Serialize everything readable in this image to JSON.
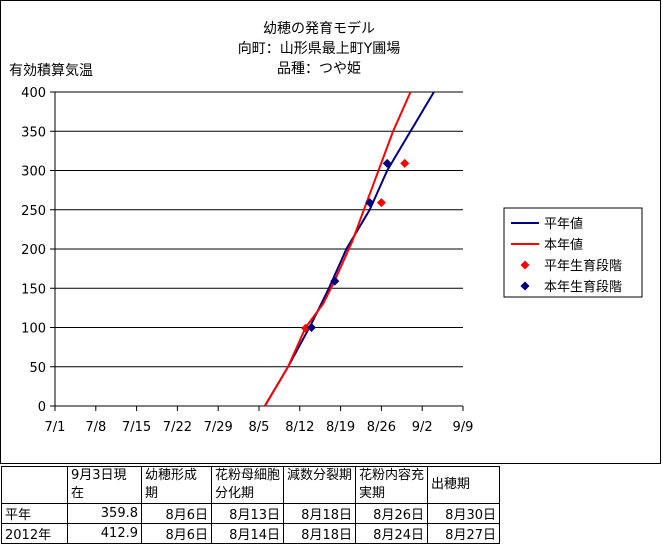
{
  "chart_data": {
    "type": "line",
    "title_lines": [
      "幼穂の発育モデル",
      "向町：山形県最上町Y圃場",
      "品種：つや姫"
    ],
    "ylabel": "有効積算気温",
    "ylim": [
      0,
      400
    ],
    "yticks": [
      0,
      50,
      100,
      150,
      200,
      250,
      300,
      350,
      400
    ],
    "xlim": [
      "7/1",
      "9/9"
    ],
    "xticks": [
      "7/1",
      "7/8",
      "7/15",
      "7/22",
      "7/29",
      "8/5",
      "8/12",
      "8/19",
      "8/26",
      "9/2",
      "9/9"
    ],
    "grid": "horizontal",
    "legend_position": "right",
    "series": [
      {
        "name": "平年値",
        "kind": "line",
        "color": "#000080",
        "points": [
          [
            "8/6",
            0
          ],
          [
            "8/10",
            50
          ],
          [
            "8/14",
            105
          ],
          [
            "8/17",
            150
          ],
          [
            "8/20",
            200
          ],
          [
            "8/24",
            250
          ],
          [
            "8/27",
            300
          ],
          [
            "8/31",
            350
          ],
          [
            "9/4",
            400
          ]
        ]
      },
      {
        "name": "本年値",
        "kind": "line",
        "color": "#ff0000",
        "points": [
          [
            "8/6",
            0
          ],
          [
            "8/10",
            50
          ],
          [
            "8/13",
            100
          ],
          [
            "8/16",
            130
          ],
          [
            "8/18",
            160
          ],
          [
            "8/21",
            210
          ],
          [
            "8/23",
            250
          ],
          [
            "8/25",
            290
          ],
          [
            "8/28",
            350
          ],
          [
            "8/31",
            400
          ]
        ]
      },
      {
        "name": "平年生育段階",
        "kind": "marker",
        "color": "#ff0000",
        "points": [
          [
            "8/13",
            99
          ],
          [
            "8/18",
            159
          ],
          [
            "8/26",
            259
          ],
          [
            "8/30",
            309
          ]
        ]
      },
      {
        "name": "本年生育段階",
        "kind": "marker",
        "color": "#000080",
        "points": [
          [
            "8/14",
            100
          ],
          [
            "8/18",
            159
          ],
          [
            "8/24",
            259
          ],
          [
            "8/27",
            309
          ]
        ]
      }
    ]
  },
  "table": {
    "headers": [
      "",
      "9月3日現在",
      "幼穂形成期",
      "花粉母細胞分化期",
      "減数分裂期",
      "花粉内容充実期",
      "出穂期"
    ],
    "rows": [
      [
        "平年",
        "359.8",
        "8月6日",
        "8月13日",
        "8月18日",
        "8月26日",
        "8月30日"
      ],
      [
        "2012年",
        "412.9",
        "8月6日",
        "8月14日",
        "8月18日",
        "8月24日",
        "8月27日"
      ]
    ]
  }
}
